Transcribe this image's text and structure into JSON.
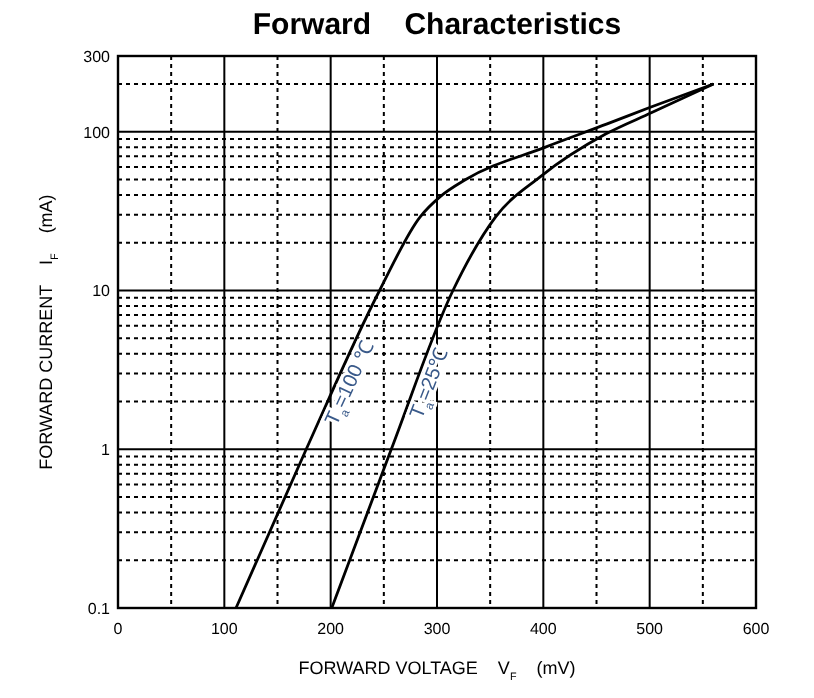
{
  "chart_data": {
    "type": "line",
    "title": "Forward    Characteristics",
    "xlabel": "FORWARD VOLTAGE    V$_{F}$    (mV)",
    "ylabel": "FORWARD CURRENT    I$_{F}$    (mA)",
    "log": "y",
    "grid": true,
    "marker": "none",
    "line_style": "solid",
    "xlim": [
      0,
      600
    ],
    "xticks": [
      0,
      100,
      200,
      300,
      400,
      500,
      600
    ],
    "ylim": [
      0.1,
      300
    ],
    "yticks": [
      0.1,
      1,
      10,
      100,
      300
    ],
    "series": [
      {
        "name": "T$_{a}$=100 ℃",
        "color": "#000000",
        "x": [
          111,
          177,
          246,
          284,
          303,
          327,
          402,
          460,
          500,
          560
        ],
        "values": [
          0.1,
          1,
          10,
          29,
          39,
          50,
          80,
          112,
          142,
          200
        ]
      },
      {
        "name": "T$_{a}$=25℃",
        "color": "#000000",
        "x": [
          201,
          257,
          315,
          355,
          397,
          459,
          502,
          560
        ],
        "values": [
          0.1,
          1,
          10,
          29,
          52,
          97,
          132,
          200
        ]
      }
    ]
  }
}
